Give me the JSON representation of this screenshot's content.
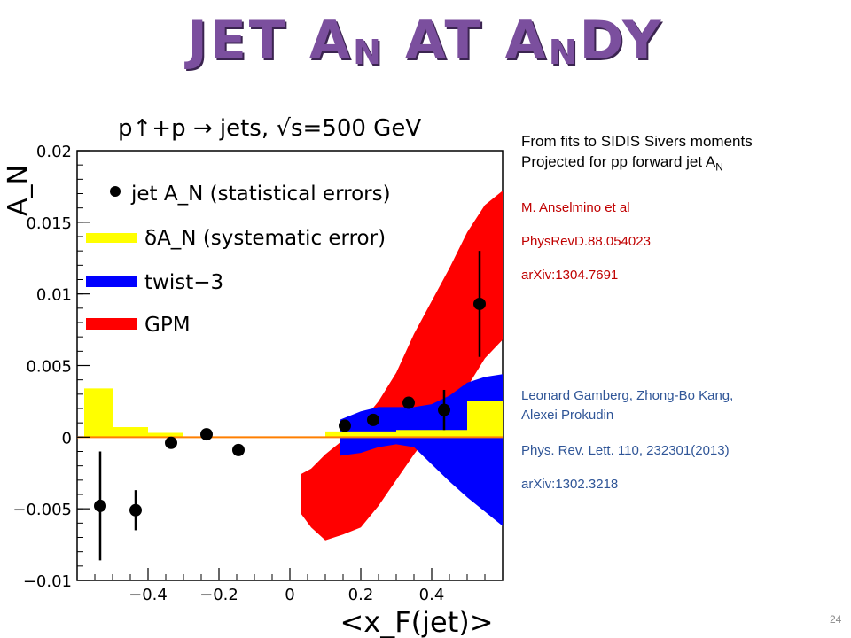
{
  "slide": {
    "title_main": "JET A",
    "title_sub1": "N",
    "title_mid": " AT A",
    "title_sub2": "N",
    "title_end": "DY",
    "page_number": "24"
  },
  "notes": {
    "line1": "From fits to SIDIS Sivers moments",
    "line2_text": "Projected for pp forward jet A",
    "line2_sub": "N",
    "ref1_authors": "M. Anselmino et al",
    "ref1_journal": "PhysRevD.88.054023",
    "ref1_arxiv": "arXiv:1304.7691",
    "ref2_authors_line1": "Leonard Gamberg, Zhong-Bo Kang,",
    "ref2_authors_line2": "Alexei Prokudin",
    "ref2_journal": "Phys. Rev. Lett. 110, 232301(2013)",
    "ref2_arxiv": "arXiv:1302.3218"
  },
  "colors": {
    "gpm": "#ff0000",
    "twist3": "#0000ff",
    "syst": "#ffff00",
    "points": "#000000",
    "zero_line": "#ff7f00",
    "title": "#7b4f9e"
  },
  "chart_data": {
    "type": "scatter",
    "title": "p↑+p → jets, √s=500 GeV",
    "xlabel": "<x_F(jet)>",
    "ylabel": "A_N",
    "xlim": [
      -0.6,
      0.6
    ],
    "ylim": [
      -0.01,
      0.02
    ],
    "x_ticks": [
      "−0.4",
      "−0.2",
      "0",
      "0.2",
      "0.4"
    ],
    "x_tick_values": [
      -0.4,
      -0.2,
      0,
      0.2,
      0.4
    ],
    "y_ticks": [
      "−0.01",
      "−0.005",
      "0",
      "0.005",
      "0.01",
      "0.015",
      "0.02"
    ],
    "y_tick_values": [
      -0.01,
      -0.005,
      0,
      0.005,
      0.01,
      0.015,
      0.02
    ],
    "legend": {
      "placement": "top-left",
      "entries": [
        {
          "label": "jet A_N (statistical errors)",
          "style": "marker"
        },
        {
          "label": "δA_N (systematic error)",
          "style": "syst"
        },
        {
          "label": "twist−3",
          "style": "twist3"
        },
        {
          "label": "GPM",
          "style": "gpm"
        }
      ]
    },
    "points": [
      {
        "x": -0.535,
        "y": -0.0048,
        "err": 0.0038
      },
      {
        "x": -0.435,
        "y": -0.0051,
        "err": 0.0014
      },
      {
        "x": -0.335,
        "y": -0.0004,
        "err": 0
      },
      {
        "x": -0.235,
        "y": 0.0002,
        "err": 0
      },
      {
        "x": -0.145,
        "y": -0.0009,
        "err": 0
      },
      {
        "x": 0.155,
        "y": 0.0008,
        "err": 0
      },
      {
        "x": 0.235,
        "y": 0.0012,
        "err": 0
      },
      {
        "x": 0.335,
        "y": 0.0024,
        "err": 0
      },
      {
        "x": 0.435,
        "y": 0.0019,
        "err": 0.0014
      },
      {
        "x": 0.535,
        "y": 0.0093,
        "err": 0.0037
      }
    ],
    "systematic_bins": [
      {
        "x0": -0.58,
        "x1": -0.5,
        "h": 0.0034
      },
      {
        "x0": -0.5,
        "x1": -0.4,
        "h": 0.0007
      },
      {
        "x0": -0.4,
        "x1": -0.3,
        "h": 0.0003
      },
      {
        "x0": 0.1,
        "x1": 0.2,
        "h": 0.0004
      },
      {
        "x0": 0.2,
        "x1": 0.3,
        "h": 0.0004
      },
      {
        "x0": 0.3,
        "x1": 0.4,
        "h": 0.0005
      },
      {
        "x0": 0.4,
        "x1": 0.5,
        "h": 0.0005
      },
      {
        "x0": 0.5,
        "x1": 0.6,
        "h": 0.0025
      }
    ],
    "twist3_band": {
      "x": [
        0.14,
        0.2,
        0.25,
        0.3,
        0.35,
        0.4,
        0.45,
        0.5,
        0.55,
        0.6
      ],
      "upper": [
        0.0012,
        0.0018,
        0.0021,
        0.0021,
        0.0021,
        0.0023,
        0.0029,
        0.0038,
        0.0042,
        0.0044
      ],
      "lower": [
        -0.0013,
        -0.0011,
        -0.0007,
        -0.0005,
        -0.0007,
        -0.0019,
        -0.0031,
        -0.0042,
        -0.0052,
        -0.0062
      ]
    },
    "gpm_band": {
      "x": [
        0.03,
        0.06,
        0.1,
        0.15,
        0.2,
        0.25,
        0.3,
        0.35,
        0.4,
        0.45,
        0.5,
        0.55,
        0.6
      ],
      "upper": [
        -0.0026,
        -0.0022,
        -0.0012,
        -0.0002,
        0.001,
        0.0025,
        0.0045,
        0.0072,
        0.0095,
        0.0118,
        0.0143,
        0.0162,
        0.0172
      ],
      "lower": [
        -0.0053,
        -0.0063,
        -0.0072,
        -0.0068,
        -0.0063,
        -0.0048,
        -0.003,
        -0.0012,
        0.0004,
        0.002,
        0.0035,
        0.0055,
        0.0068
      ]
    }
  }
}
